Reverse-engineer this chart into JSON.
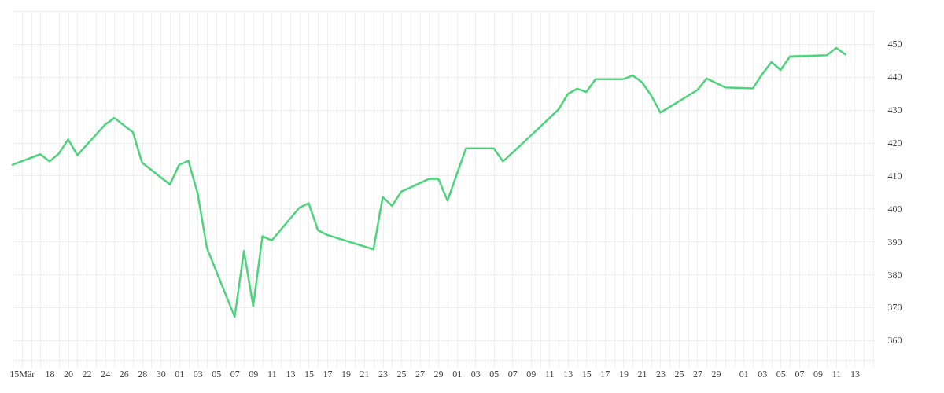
{
  "chart_data": {
    "type": "line",
    "color": "#4cd47b",
    "line_style": "solid",
    "grid": true,
    "x": [
      "--03-14",
      "--03-17",
      "--03-18",
      "--03-19",
      "--03-20",
      "--03-21",
      "--03-24",
      "--03-25",
      "--03-27",
      "--03-28",
      "--03-31",
      "--04-01",
      "--04-02",
      "--04-03",
      "--04-04",
      "--04-07",
      "--04-08",
      "--04-09",
      "--04-10",
      "--04-11",
      "--04-14",
      "--04-15",
      "--04-16",
      "--04-17",
      "--04-22",
      "--04-23",
      "--04-24",
      "--04-25",
      "--04-28",
      "--04-29",
      "--04-30",
      "--05-02",
      "--05-05",
      "--05-06",
      "--05-08",
      "--05-12",
      "--05-13",
      "--05-14",
      "--05-15",
      "--05-16",
      "--05-19",
      "--05-20",
      "--05-21",
      "--05-22",
      "--05-23",
      "--05-27",
      "--05-28",
      "--05-30",
      "--06-02",
      "--06-03",
      "--06-04",
      "--06-05",
      "--06-06",
      "--06-10",
      "--06-11",
      "--06-12"
    ],
    "values": [
      413.3,
      416.5,
      414.3,
      416.7,
      421.0,
      416.2,
      425.5,
      427.5,
      423.2,
      413.9,
      407.3,
      413.3,
      414.5,
      404.6,
      388.0,
      367.1,
      387.1,
      370.4,
      391.6,
      390.3,
      400.3,
      401.6,
      393.4,
      392.0,
      387.6,
      403.5,
      400.8,
      405.1,
      409.0,
      409.1,
      402.4,
      418.3,
      418.3,
      414.3,
      419.5,
      430.1,
      434.8,
      436.4,
      435.4,
      439.3,
      439.3,
      440.4,
      438.4,
      434.4,
      429.1,
      436.0,
      439.5,
      436.8,
      436.5,
      440.8,
      444.5,
      442.1,
      446.2,
      446.6,
      448.8,
      446.8
    ],
    "ylim": [
      354,
      460
    ],
    "yticks": [
      360,
      370,
      380,
      390,
      400,
      410,
      420,
      430,
      440,
      450
    ],
    "xlim": [
      "--03-14",
      "--06-15"
    ],
    "xticks": [
      {
        "value": "--03-14",
        "label": null
      },
      {
        "value": "--03-15",
        "label": "15Mär"
      },
      {
        "value": "--03-16",
        "label": null
      },
      {
        "value": "--03-17",
        "label": null
      },
      {
        "value": "--03-18",
        "label": "18"
      },
      {
        "value": "--03-19",
        "label": null
      },
      {
        "value": "--03-20",
        "label": "20"
      },
      {
        "value": "--03-21",
        "label": null
      },
      {
        "value": "--03-22",
        "label": "22"
      },
      {
        "value": "--03-23",
        "label": null
      },
      {
        "value": "--03-24",
        "label": "24"
      },
      {
        "value": "--03-25",
        "label": null
      },
      {
        "value": "--03-26",
        "label": "26"
      },
      {
        "value": "--03-27",
        "label": null
      },
      {
        "value": "--03-28",
        "label": "28"
      },
      {
        "value": "--03-29",
        "label": null
      },
      {
        "value": "--03-30",
        "label": "30"
      },
      {
        "value": "--03-31",
        "label": null
      },
      {
        "value": "--04-01",
        "label": "01"
      },
      {
        "value": "--04-02",
        "label": null
      },
      {
        "value": "--04-03",
        "label": "03"
      },
      {
        "value": "--04-04",
        "label": null
      },
      {
        "value": "--04-05",
        "label": "05"
      },
      {
        "value": "--04-06",
        "label": null
      },
      {
        "value": "--04-07",
        "label": "07"
      },
      {
        "value": "--04-08",
        "label": null
      },
      {
        "value": "--04-09",
        "label": "09"
      },
      {
        "value": "--04-10",
        "label": null
      },
      {
        "value": "--04-11",
        "label": "11"
      },
      {
        "value": "--04-12",
        "label": null
      },
      {
        "value": "--04-13",
        "label": "13"
      },
      {
        "value": "--04-14",
        "label": null
      },
      {
        "value": "--04-15",
        "label": "15"
      },
      {
        "value": "--04-16",
        "label": null
      },
      {
        "value": "--04-17",
        "label": "17"
      },
      {
        "value": "--04-18",
        "label": null
      },
      {
        "value": "--04-19",
        "label": "19"
      },
      {
        "value": "--04-20",
        "label": null
      },
      {
        "value": "--04-21",
        "label": "21"
      },
      {
        "value": "--04-22",
        "label": null
      },
      {
        "value": "--04-23",
        "label": "23"
      },
      {
        "value": "--04-24",
        "label": null
      },
      {
        "value": "--04-25",
        "label": "25"
      },
      {
        "value": "--04-26",
        "label": null
      },
      {
        "value": "--04-27",
        "label": "27"
      },
      {
        "value": "--04-28",
        "label": null
      },
      {
        "value": "--04-29",
        "label": "29"
      },
      {
        "value": "--04-30",
        "label": null
      },
      {
        "value": "--05-01",
        "label": "01"
      },
      {
        "value": "--05-02",
        "label": null
      },
      {
        "value": "--05-03",
        "label": "03"
      },
      {
        "value": "--05-04",
        "label": null
      },
      {
        "value": "--05-05",
        "label": "05"
      },
      {
        "value": "--05-06",
        "label": null
      },
      {
        "value": "--05-07",
        "label": "07"
      },
      {
        "value": "--05-08",
        "label": null
      },
      {
        "value": "--05-09",
        "label": "09"
      },
      {
        "value": "--05-10",
        "label": null
      },
      {
        "value": "--05-11",
        "label": "11"
      },
      {
        "value": "--05-12",
        "label": null
      },
      {
        "value": "--05-13",
        "label": "13"
      },
      {
        "value": "--05-14",
        "label": null
      },
      {
        "value": "--05-15",
        "label": "15"
      },
      {
        "value": "--05-16",
        "label": null
      },
      {
        "value": "--05-17",
        "label": "17"
      },
      {
        "value": "--05-18",
        "label": null
      },
      {
        "value": "--05-19",
        "label": "19"
      },
      {
        "value": "--05-20",
        "label": null
      },
      {
        "value": "--05-21",
        "label": "21"
      },
      {
        "value": "--05-22",
        "label": null
      },
      {
        "value": "--05-23",
        "label": "23"
      },
      {
        "value": "--05-24",
        "label": null
      },
      {
        "value": "--05-25",
        "label": "25"
      },
      {
        "value": "--05-26",
        "label": null
      },
      {
        "value": "--05-27",
        "label": "27"
      },
      {
        "value": "--05-28",
        "label": null
      },
      {
        "value": "--05-29",
        "label": "29"
      },
      {
        "value": "--05-30",
        "label": null
      },
      {
        "value": "--05-31",
        "label": null
      },
      {
        "value": "--06-01",
        "label": "01"
      },
      {
        "value": "--06-02",
        "label": null
      },
      {
        "value": "--06-03",
        "label": "03"
      },
      {
        "value": "--06-04",
        "label": null
      },
      {
        "value": "--06-05",
        "label": "05"
      },
      {
        "value": "--06-06",
        "label": null
      },
      {
        "value": "--06-07",
        "label": "07"
      },
      {
        "value": "--06-08",
        "label": null
      },
      {
        "value": "--06-09",
        "label": "09"
      },
      {
        "value": "--06-10",
        "label": null
      },
      {
        "value": "--06-11",
        "label": "11"
      },
      {
        "value": "--06-12",
        "label": null
      },
      {
        "value": "--06-13",
        "label": "13"
      },
      {
        "value": "--06-14",
        "label": null
      },
      {
        "value": "--06-15",
        "label": null
      }
    ]
  }
}
